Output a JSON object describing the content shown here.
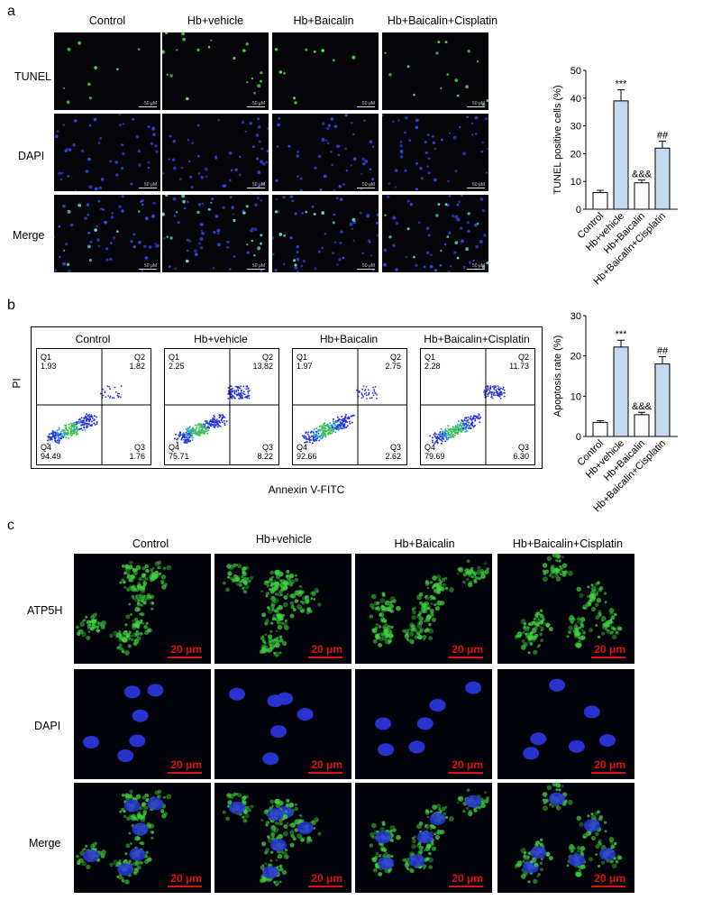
{
  "panels": {
    "a": "a",
    "b": "b",
    "c": "c"
  },
  "groups": [
    "Control",
    "Hb+vehicle",
    "Hb+Baicalin",
    "Hb+Baicalin+Cisplatin"
  ],
  "panel_a": {
    "rows": [
      "TUNEL",
      "DAPI",
      "Merge"
    ],
    "scale_bar": "50 μM"
  },
  "panel_b": {
    "xlabel": "Annexin V-FITC",
    "ylabel": "PI",
    "quadrant_labels": [
      "Q1",
      "Q2",
      "Q3",
      "Q4"
    ],
    "plots": [
      {
        "title": "Control",
        "q1": "1.93",
        "q2": "1.82",
        "q3": "1.76",
        "q4": "94.49"
      },
      {
        "title": "Hb+vehicle",
        "q1": "2.25",
        "q2": "13.82",
        "q3": "8.22",
        "q4": "75.71"
      },
      {
        "title": "Hb+Baicalin",
        "q1": "1.97",
        "q2": "2.75",
        "q3": "2.62",
        "q4": "92.66"
      },
      {
        "title": "Hb+Baicalin+Cisplatin",
        "q1": "2.28",
        "q2": "11.73",
        "q3": "6.30",
        "q4": "79.69"
      }
    ]
  },
  "panel_c": {
    "rows": [
      "ATP5H",
      "DAPI",
      "Merge"
    ],
    "scale_bar": "20 μm"
  },
  "colors": {
    "bar_fill": "#c5d9f1",
    "bar_plain": "#ffffff",
    "green": "#3fd13f",
    "blue": "#2a36d8",
    "scale_red": "#e01010"
  },
  "chart_data": [
    {
      "type": "bar",
      "categories": [
        "Control",
        "Hb+vehicle",
        "Hb+Baicalin",
        "Hb+Baicalin+Cisplatin"
      ],
      "values": [
        6,
        39,
        9.5,
        22
      ],
      "errors": [
        0.8,
        4,
        1,
        2.5
      ],
      "annotations": [
        "",
        "***",
        "&&&",
        "##"
      ],
      "ylabel": "TUNEL positive cells (%)",
      "ylim": [
        0,
        50
      ],
      "yticks": [
        "0",
        "10",
        "20",
        "30",
        "40",
        "50"
      ]
    },
    {
      "type": "bar",
      "categories": [
        "Control",
        "Hb+vehicle",
        "Hb+Baicalin",
        "Hb+Baicalin+Cisplatin"
      ],
      "values": [
        3.5,
        22.2,
        5.4,
        18
      ],
      "errors": [
        0.4,
        1.7,
        0.6,
        1.8
      ],
      "annotations": [
        "",
        "***",
        "&&&",
        "##"
      ],
      "ylabel": "Apoptosis rate (%)",
      "ylim": [
        0,
        30
      ],
      "yticks": [
        "0",
        "10",
        "20",
        "30"
      ]
    }
  ]
}
